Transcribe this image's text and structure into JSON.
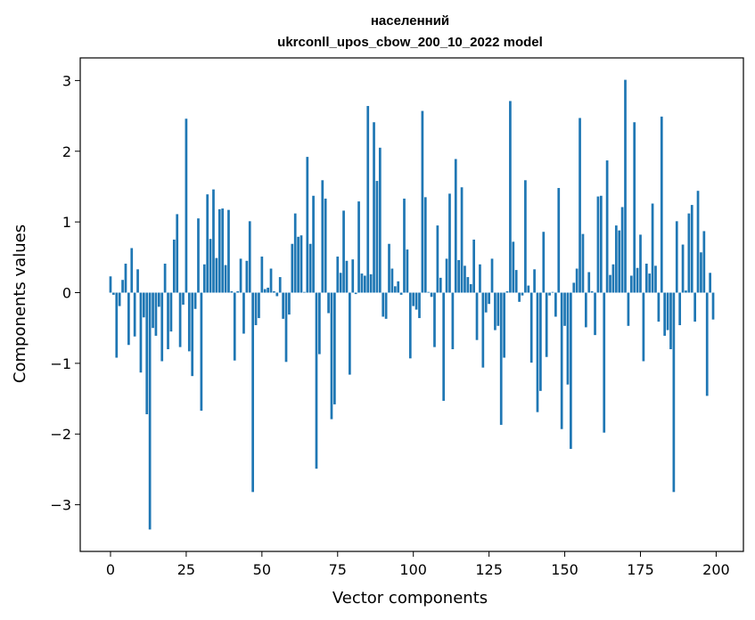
{
  "chart_data": {
    "type": "bar",
    "title_line1": "населенний",
    "title_line2": "ukrconll_upos_cbow_200_10_2022 model",
    "xlabel": "Vector components",
    "ylabel": "Components values",
    "xlim": [
      -10,
      209
    ],
    "ylim": [
      -3.66,
      3.32
    ],
    "xticks": [
      0,
      25,
      50,
      75,
      100,
      125,
      150,
      175,
      200
    ],
    "xtick_labels": [
      "0",
      "25",
      "50",
      "75",
      "100",
      "125",
      "150",
      "175",
      "200"
    ],
    "yticks": [
      -3,
      -2,
      -1,
      0,
      1,
      2,
      3
    ],
    "ytick_labels": [
      "−3",
      "−2",
      "−1",
      "0",
      "1",
      "2",
      "3"
    ],
    "bar_color": "#1f77b4",
    "grid": false,
    "values": [
      0.23,
      -0.03,
      -0.92,
      -0.19,
      0.18,
      0.41,
      -0.74,
      0.63,
      -0.62,
      0.33,
      -1.13,
      -0.35,
      -1.72,
      -3.35,
      -0.5,
      -0.61,
      -0.2,
      -0.97,
      0.41,
      -0.8,
      -0.55,
      0.75,
      1.11,
      -0.77,
      -0.17,
      2.46,
      -0.83,
      -1.18,
      -0.23,
      1.05,
      -1.67,
      0.4,
      1.39,
      0.76,
      1.46,
      0.49,
      1.18,
      1.19,
      0.39,
      1.17,
      0.02,
      -0.96,
      0.02,
      0.48,
      -0.58,
      0.45,
      1.01,
      -2.82,
      -0.46,
      -0.36,
      0.51,
      0.05,
      0.07,
      0.34,
      0.02,
      -0.05,
      0.22,
      -0.37,
      -0.98,
      -0.31,
      0.69,
      1.12,
      0.79,
      0.81,
      0.01,
      1.92,
      0.69,
      1.37,
      -2.49,
      -0.87,
      1.59,
      1.33,
      -0.29,
      -1.79,
      -1.58,
      0.51,
      0.28,
      1.16,
      0.45,
      -1.16,
      0.47,
      -0.02,
      1.29,
      0.27,
      0.24,
      2.64,
      0.26,
      2.41,
      1.58,
      2.05,
      -0.34,
      -0.37,
      0.69,
      0.34,
      0.09,
      0.16,
      -0.03,
      1.33,
      0.61,
      -0.93,
      -0.19,
      -0.24,
      -0.36,
      2.57,
      1.35,
      0.01,
      -0.06,
      -0.77,
      0.95,
      0.21,
      -1.53,
      0.48,
      1.4,
      -0.8,
      1.89,
      0.46,
      1.49,
      0.38,
      0.22,
      0.12,
      0.75,
      -0.67,
      0.4,
      -1.06,
      -0.28,
      -0.16,
      0.48,
      -0.53,
      -0.47,
      -1.87,
      -0.92,
      0.02,
      2.71,
      0.72,
      0.32,
      -0.13,
      -0.04,
      1.59,
      0.1,
      -0.99,
      0.33,
      -1.69,
      -1.39,
      0.86,
      -0.91,
      -0.04,
      0.01,
      -0.34,
      1.48,
      -1.93,
      -0.47,
      -1.3,
      -2.21,
      0.14,
      0.34,
      2.47,
      0.83,
      -0.49,
      0.29,
      0.02,
      -0.6,
      1.36,
      1.37,
      -1.98,
      1.87,
      0.25,
      0.4,
      0.95,
      0.88,
      1.21,
      3.01,
      -0.47,
      0.24,
      2.41,
      0.35,
      0.82,
      -0.97,
      0.41,
      0.27,
      1.26,
      0.38,
      -0.41,
      2.49,
      -0.61,
      -0.53,
      -0.8,
      -2.82,
      1.01,
      -0.46,
      0.68,
      0.03,
      1.12,
      1.24,
      -0.41,
      1.44,
      0.57,
      0.87,
      -1.46,
      0.28,
      -0.38
    ]
  }
}
